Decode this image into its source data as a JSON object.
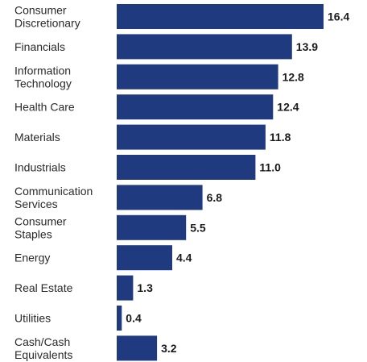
{
  "chart_data": {
    "type": "bar",
    "orientation": "horizontal",
    "categories": [
      [
        "Consumer",
        "Discretionary"
      ],
      [
        "Financials"
      ],
      [
        "Information",
        "Technology"
      ],
      [
        "Health Care"
      ],
      [
        "Materials"
      ],
      [
        "Industrials"
      ],
      [
        "Communication",
        "Services"
      ],
      [
        "Consumer",
        "Staples"
      ],
      [
        "Energy"
      ],
      [
        "Real Estate"
      ],
      [
        "Utilities"
      ],
      [
        "Cash/Cash",
        "Equivalents"
      ]
    ],
    "values": [
      16.4,
      13.9,
      12.8,
      12.4,
      11.8,
      11.0,
      6.8,
      5.5,
      4.4,
      1.3,
      0.4,
      3.2
    ],
    "value_labels": [
      "16.4",
      "13.9",
      "12.8",
      "12.4",
      "11.8",
      "11.0",
      "6.8",
      "5.5",
      "4.4",
      "1.3",
      "0.4",
      "3.2"
    ],
    "xlim": [
      0,
      16.4
    ],
    "grid": false,
    "legend": "none",
    "bar_color": "#1f3a7f"
  }
}
